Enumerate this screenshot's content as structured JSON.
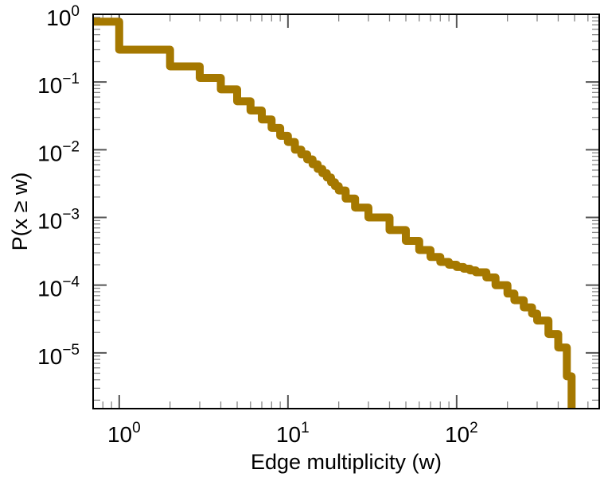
{
  "chart_data": {
    "type": "line",
    "title": "",
    "xlabel": "Edge multiplicity (w)",
    "ylabel": "P(x ≥ w)",
    "xscale": "log",
    "yscale": "log",
    "xlim": [
      0.7,
      700
    ],
    "ylim": [
      1.5e-06,
      1
    ],
    "grid": false,
    "legend": "none",
    "line_color": "#a57800",
    "x_ticks": [
      {
        "base": "10",
        "exp": "0",
        "value": 1
      },
      {
        "base": "10",
        "exp": "1",
        "value": 10
      },
      {
        "base": "10",
        "exp": "2",
        "value": 100
      }
    ],
    "y_ticks": [
      {
        "base": "10",
        "exp": "0",
        "value": 1
      },
      {
        "base": "10",
        "exp": "−1",
        "value": 0.1
      },
      {
        "base": "10",
        "exp": "−2",
        "value": 0.01
      },
      {
        "base": "10",
        "exp": "−3",
        "value": 0.001
      },
      {
        "base": "10",
        "exp": "−4",
        "value": 0.0001
      },
      {
        "base": "10",
        "exp": "−5",
        "value": 1e-05
      }
    ],
    "series": [
      {
        "step": true,
        "x": [
          0.7,
          1,
          2,
          3,
          4,
          5,
          6,
          7,
          8,
          9,
          10,
          11,
          12,
          13,
          14,
          15,
          16,
          17,
          18,
          19,
          20,
          22,
          25,
          30,
          40,
          50,
          60,
          70,
          80,
          90,
          100,
          110,
          120,
          130,
          150,
          170,
          200,
          220,
          250,
          280,
          300,
          350,
          400,
          450,
          480
        ],
        "y": [
          0.78,
          0.3,
          0.17,
          0.115,
          0.078,
          0.052,
          0.038,
          0.028,
          0.021,
          0.016,
          0.013,
          0.01,
          0.0085,
          0.0072,
          0.0061,
          0.0052,
          0.0045,
          0.0039,
          0.0033,
          0.0029,
          0.0025,
          0.0019,
          0.0014,
          0.001,
          0.00065,
          0.00045,
          0.00033,
          0.00026,
          0.00022,
          0.0002,
          0.000185,
          0.000175,
          0.000165,
          0.000155,
          0.00013,
          0.0001,
          7.5e-05,
          6e-05,
          4.7e-05,
          3.8e-05,
          3e-05,
          1.9e-05,
          1.2e-05,
          4.5e-06,
          1.5e-06
        ]
      }
    ]
  }
}
